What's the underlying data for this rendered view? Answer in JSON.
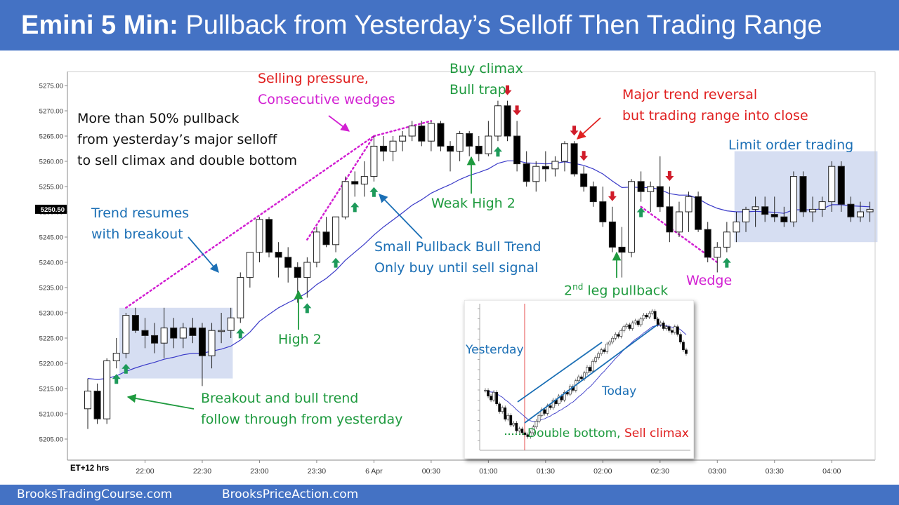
{
  "header": {
    "title_bold": "Emini 5 Min:",
    "title_rest": " Pullback from Yesterday’s Selloff Then Trading Range"
  },
  "footer": {
    "left": "BrooksTradingCourse.com",
    "right": "BrooksPriceAction.com"
  },
  "colors": {
    "header_bg": "#4472c4",
    "bull_candle": "#ffffff",
    "bear_candle": "#000000",
    "ema": "#3a3ac8",
    "range_box": "#c8d3ee",
    "arrow_up": "#1e9a5a",
    "arrow_down": "#d01c2a",
    "wedge_dots": "#d21fd2"
  },
  "chart_data": {
    "type": "candlestick",
    "instrument": "Emini",
    "timeframe": "5 Min",
    "y_axis": {
      "ticks": [
        5205,
        5210,
        5215,
        5220,
        5225,
        5230,
        5235,
        5240,
        5245,
        5250,
        5255,
        5260,
        5265,
        5270,
        5275
      ],
      "tick_labels": [
        "5205.00",
        "5210.00",
        "5215.00",
        "5220.00",
        "5225.00",
        "5230.00",
        "5235.00",
        "5240.00",
        "5245.00",
        "5250.00",
        "5255.00",
        "5260.00",
        "5265.00",
        "5270.00",
        "5275.00"
      ],
      "range": [
        5202,
        5279
      ],
      "last_price_label": "5250.50",
      "last_price": 5250.5
    },
    "x_axis": {
      "label": "ET+12 hrs",
      "tick_labels": [
        "22:00",
        "22:30",
        "23:00",
        "23:30",
        "6 Apr",
        "00:30",
        "01:00",
        "01:30",
        "02:00",
        "02:30",
        "03:00",
        "03:30",
        "04:00"
      ],
      "tick_bars": [
        6,
        12,
        18,
        24,
        30,
        36,
        42,
        48,
        54,
        60,
        66,
        72,
        78
      ]
    },
    "bars": [
      [
        5211.0,
        5217.0,
        5207.0,
        5214.5
      ],
      [
        5214.5,
        5216.0,
        5208.0,
        5209.0
      ],
      [
        5209.0,
        5221.0,
        5208.0,
        5220.5
      ],
      [
        5220.5,
        5225.0,
        5219.0,
        5222.0
      ],
      [
        5222.0,
        5230.0,
        5221.0,
        5229.5
      ],
      [
        5229.5,
        5231.0,
        5226.0,
        5226.5
      ],
      [
        5226.5,
        5229.0,
        5223.0,
        5225.5
      ],
      [
        5225.5,
        5228.0,
        5222.0,
        5224.0
      ],
      [
        5224.0,
        5231.0,
        5221.0,
        5227.0
      ],
      [
        5227.0,
        5229.0,
        5223.0,
        5225.0
      ],
      [
        5225.0,
        5228.0,
        5223.0,
        5227.0
      ],
      [
        5227.0,
        5229.0,
        5224.0,
        5225.5
      ],
      [
        5227.0,
        5228.0,
        5215.5,
        5221.5
      ],
      [
        5221.5,
        5228.0,
        5219.0,
        5226.5
      ],
      [
        5226.5,
        5230.0,
        5224.0,
        5226.5
      ],
      [
        5226.5,
        5231.0,
        5225.0,
        5229.0
      ],
      [
        5229.0,
        5238.0,
        5228.0,
        5237.0
      ],
      [
        5237.0,
        5242.0,
        5235.0,
        5242.0
      ],
      [
        5242.0,
        5249.0,
        5240.0,
        5248.5
      ],
      [
        5248.5,
        5249.0,
        5241.0,
        5242.0
      ],
      [
        5242.0,
        5244.0,
        5237.0,
        5241.0
      ],
      [
        5241.0,
        5243.0,
        5236.0,
        5239.0
      ],
      [
        5239.0,
        5240.0,
        5232.0,
        5237.0
      ],
      [
        5237.0,
        5241.0,
        5233.0,
        5240.0
      ],
      [
        5240.0,
        5247.0,
        5239.0,
        5246.0
      ],
      [
        5246.0,
        5249.0,
        5243.0,
        5243.5
      ],
      [
        5243.5,
        5249.0,
        5242.0,
        5249.0
      ],
      [
        5249.0,
        5257.0,
        5248.5,
        5256.0
      ],
      [
        5256.0,
        5258.0,
        5253.0,
        5255.5
      ],
      [
        5255.5,
        5260.0,
        5253.0,
        5257.0
      ],
      [
        5257.0,
        5265.0,
        5256.0,
        5263.0
      ],
      [
        5263.0,
        5265.0,
        5260.0,
        5262.0
      ],
      [
        5262.0,
        5265.0,
        5260.0,
        5264.0
      ],
      [
        5264.0,
        5266.0,
        5262.0,
        5265.0
      ],
      [
        5265.0,
        5268.0,
        5264.0,
        5267.0
      ],
      [
        5267.0,
        5268.0,
        5263.0,
        5264.0
      ],
      [
        5264.0,
        5268.0,
        5262.0,
        5267.5
      ],
      [
        5267.5,
        5268.0,
        5262.0,
        5263.0
      ],
      [
        5263.0,
        5264.0,
        5258.0,
        5262.0
      ],
      [
        5262.0,
        5266.0,
        5260.0,
        5265.5
      ],
      [
        5265.5,
        5266.0,
        5261.0,
        5263.0
      ],
      [
        5263.0,
        5265.0,
        5260.0,
        5261.5
      ],
      [
        5261.5,
        5268.0,
        5261.0,
        5265.0
      ],
      [
        5265.0,
        5272.0,
        5264.0,
        5271.0
      ],
      [
        5271.0,
        5272.0,
        5264.0,
        5265.0
      ],
      [
        5265.0,
        5268.0,
        5258.0,
        5259.5
      ],
      [
        5259.5,
        5262.0,
        5255.0,
        5256.0
      ],
      [
        5256.0,
        5260.0,
        5254.0,
        5259.0
      ],
      [
        5259.0,
        5262.0,
        5256.0,
        5258.5
      ],
      [
        5258.5,
        5261.0,
        5257.0,
        5260.0
      ],
      [
        5260.0,
        5264.0,
        5258.0,
        5263.5
      ],
      [
        5263.5,
        5264.0,
        5257.0,
        5257.5
      ],
      [
        5257.5,
        5259.0,
        5254.0,
        5255.0
      ],
      [
        5255.0,
        5256.0,
        5251.0,
        5252.0
      ],
      [
        5252.0,
        5255.0,
        5247.0,
        5248.0
      ],
      [
        5248.0,
        5251.0,
        5242.0,
        5243.0
      ],
      [
        5243.0,
        5247.0,
        5237.0,
        5242.0
      ],
      [
        5242.0,
        5256.5,
        5241.0,
        5256.0
      ],
      [
        5256.0,
        5258.0,
        5252.0,
        5254.0
      ],
      [
        5254.0,
        5256.0,
        5250.0,
        5255.0
      ],
      [
        5255.0,
        5261.0,
        5250.0,
        5251.0
      ],
      [
        5251.0,
        5255.0,
        5244.0,
        5246.0
      ],
      [
        5246.0,
        5252.0,
        5245.0,
        5250.0
      ],
      [
        5250.0,
        5254.0,
        5246.0,
        5253.0
      ],
      [
        5253.0,
        5254.0,
        5246.0,
        5246.5
      ],
      [
        5246.5,
        5248.0,
        5240.0,
        5241.0
      ],
      [
        5241.0,
        5244.0,
        5238.0,
        5243.0
      ],
      [
        5243.0,
        5248.0,
        5242.0,
        5246.0
      ],
      [
        5246.0,
        5250.0,
        5244.0,
        5248.0
      ],
      [
        5248.0,
        5251.0,
        5246.0,
        5250.5
      ],
      [
        5250.5,
        5253.0,
        5247.0,
        5251.0
      ],
      [
        5251.0,
        5253.0,
        5248.0,
        5249.5
      ],
      [
        5249.5,
        5253.0,
        5248.0,
        5249.0
      ],
      [
        5249.0,
        5251.0,
        5247.0,
        5248.0
      ],
      [
        5248.0,
        5258.0,
        5247.0,
        5257.0
      ],
      [
        5257.0,
        5258.0,
        5249.0,
        5250.0
      ],
      [
        5250.0,
        5253.0,
        5248.0,
        5250.5
      ],
      [
        5250.5,
        5253.0,
        5249.0,
        5252.0
      ],
      [
        5252.0,
        5260.0,
        5250.0,
        5259.0
      ],
      [
        5259.0,
        5260.0,
        5250.0,
        5251.5
      ],
      [
        5251.5,
        5253.0,
        5248.0,
        5249.0
      ],
      [
        5249.0,
        5252.0,
        5248.0,
        5250.0
      ],
      [
        5250.0,
        5252.0,
        5248.0,
        5250.5
      ]
    ],
    "ema_20": [
      5217.0,
      5216.8,
      5217.0,
      5217.5,
      5218.4,
      5219.1,
      5219.7,
      5220.2,
      5220.8,
      5221.2,
      5221.7,
      5222.0,
      5222.0,
      5222.4,
      5222.8,
      5223.4,
      5224.6,
      5226.2,
      5228.3,
      5229.7,
      5231.0,
      5232.0,
      5232.9,
      5234.0,
      5235.6,
      5236.8,
      5238.4,
      5240.4,
      5242.0,
      5243.6,
      5245.4,
      5247.0,
      5248.4,
      5249.8,
      5251.3,
      5252.4,
      5253.7,
      5254.6,
      5255.4,
      5256.4,
      5257.2,
      5257.8,
      5258.5,
      5259.6,
      5260.1,
      5260.1,
      5259.7,
      5259.6,
      5259.5,
      5259.6,
      5259.9,
      5259.6,
      5259.2,
      5258.5,
      5257.5,
      5256.1,
      5254.8,
      5254.9,
      5254.8,
      5254.8,
      5254.4,
      5253.6,
      5253.3,
      5253.3,
      5252.6,
      5251.5,
      5250.7,
      5250.2,
      5250.0,
      5250.0,
      5250.1,
      5250.0,
      5249.9,
      5249.7,
      5250.4,
      5250.4,
      5250.4,
      5250.6,
      5251.4,
      5251.4,
      5251.2,
      5251.1,
      5251.0
    ],
    "range_boxes": [
      {
        "bar_from": 3.3,
        "bar_to": 15.2,
        "price_low": 5217.0,
        "price_high": 5231.0
      },
      {
        "bar_from": 67.8,
        "bar_to": 82.8,
        "price_low": 5244.0,
        "price_high": 5262.0
      }
    ],
    "wedge_lines": [
      {
        "from_bar": 4,
        "from_price": 5231.0,
        "to_bar": 30,
        "to_price": 5265.0
      },
      {
        "from_bar": 30,
        "from_price": 5265.0,
        "to_bar": 36,
        "to_price": 5268.0
      },
      {
        "from_bar": 23,
        "from_price": 5244.5,
        "to_bar": 30,
        "to_price": 5265.0
      },
      {
        "from_bar": 58,
        "from_price": 5251.0,
        "to_bar": 66,
        "to_price": 5240.0
      },
      {
        "from_bar": 12,
        "from_price": 5215.5,
        "to_bar": 12,
        "to_price": 5215.5
      }
    ],
    "up_arrows": [
      3,
      4,
      16,
      23,
      26,
      28,
      30,
      43,
      58,
      67
    ],
    "down_arrows": [
      44,
      45,
      51,
      52,
      55,
      61
    ],
    "annotations": {
      "more_than": [
        "More than 50% pullback",
        "from yesterday’s major selloff",
        "to sell climax and double bottom"
      ],
      "selling_pressure_1": "Selling pressure,",
      "selling_pressure_2": "Consecutive wedges",
      "buy_climax_1": "Buy climax",
      "buy_climax_2": "Bull trap",
      "major_trend_1": "Major trend reversal",
      "major_trend_2": "but trading range into close",
      "limit_order": "Limit order trading",
      "trend_resumes_1": "Trend resumes",
      "trend_resumes_2": "with breakout",
      "weak_high2": "Weak High 2",
      "small_pullback_1": "Small Pullback Bull Trend",
      "small_pullback_2": "Only buy until sell signal",
      "second_leg_sup": "nd",
      "second_leg_pre": "2",
      "second_leg_post": " leg pullback",
      "wedge": "Wedge",
      "high2": "High 2",
      "breakout_1": "Breakout and bull trend",
      "breakout_2": "follow through from yesterday"
    },
    "inset": {
      "yesterday_label": "Yesterday",
      "today_label": "Today",
      "double_bottom_label": "Double bottom,",
      "sell_climax_label": "Sell climax",
      "closes": [
        5231,
        5228,
        5226,
        5230,
        5224,
        5220,
        5222,
        5216,
        5218,
        5213,
        5214,
        5210,
        5211,
        5209,
        5208,
        5207,
        5209,
        5212,
        5215,
        5218,
        5221,
        5219,
        5223,
        5222,
        5226,
        5224,
        5228,
        5226,
        5230,
        5229,
        5233,
        5231,
        5236,
        5238,
        5237,
        5240,
        5243,
        5241,
        5246,
        5248,
        5250,
        5252,
        5251,
        5255,
        5256,
        5258,
        5260,
        5259,
        5262,
        5264,
        5265,
        5263,
        5266,
        5267,
        5265,
        5268,
        5270,
        5269,
        5271,
        5272,
        5268,
        5265,
        5266,
        5263,
        5264,
        5262,
        5261,
        5264,
        5260,
        5256,
        5252,
        5250
      ]
    }
  }
}
